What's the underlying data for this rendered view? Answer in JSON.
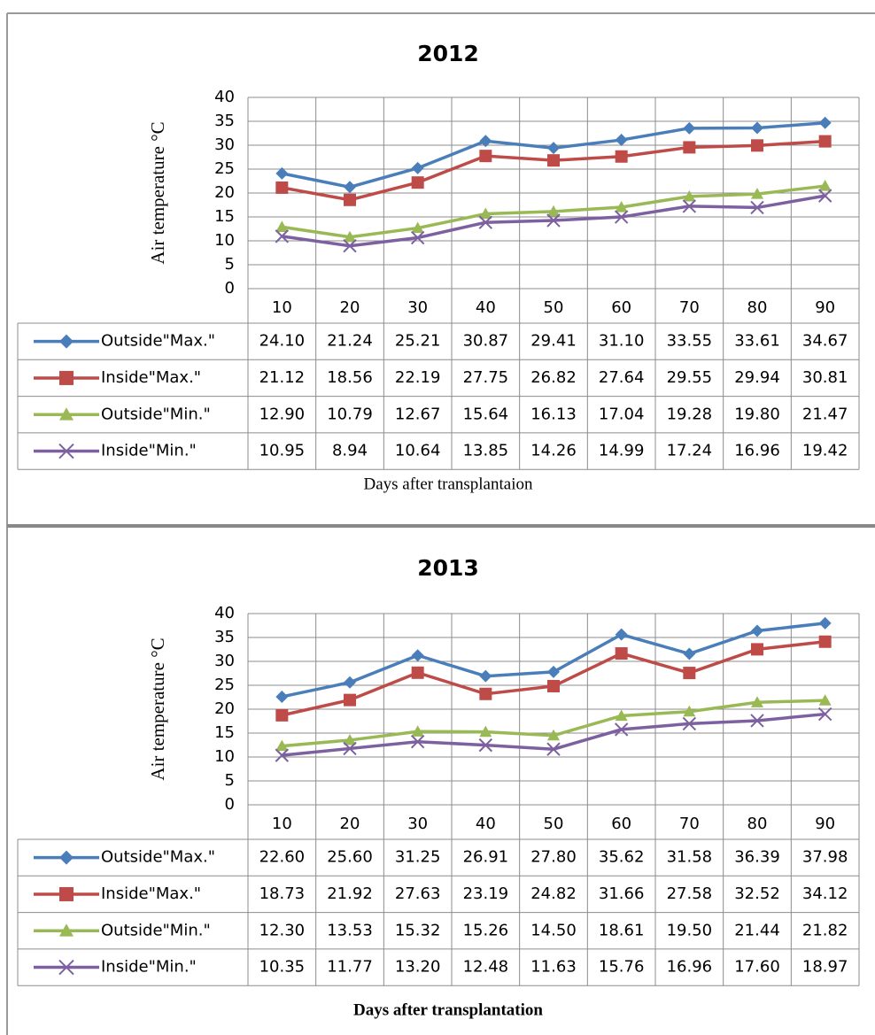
{
  "chart_data": [
    {
      "type": "line",
      "title": "2012",
      "y_label": "Air temperature °C",
      "x_label": "Days after transplantaion",
      "categories": [
        "10",
        "20",
        "30",
        "40",
        "50",
        "60",
        "70",
        "80",
        "90"
      ],
      "ylim": [
        0,
        40
      ],
      "yticks": [
        0,
        5,
        10,
        15,
        20,
        25,
        30,
        35,
        40
      ],
      "grid": true,
      "series": [
        {
          "name": "Outside\"Max.\"",
          "color": "#4a7ebb",
          "marker": "diamond",
          "values": [
            24.1,
            21.24,
            25.21,
            30.87,
            29.41,
            31.1,
            33.55,
            33.61,
            34.67
          ],
          "value_labels": [
            "24.10",
            "21.24",
            "25.21",
            "30.87",
            "29.41",
            "31.10",
            "33.55",
            "33.61",
            "34.67"
          ]
        },
        {
          "name": "Inside\"Max.\"",
          "color": "#be4b48",
          "marker": "square",
          "values": [
            21.12,
            18.56,
            22.19,
            27.75,
            26.82,
            27.64,
            29.55,
            29.94,
            30.81
          ],
          "value_labels": [
            "21.12",
            "18.56",
            "22.19",
            "27.75",
            "26.82",
            "27.64",
            "29.55",
            "29.94",
            "30.81"
          ]
        },
        {
          "name": "Outside\"Min.\"",
          "color": "#98b954",
          "marker": "triangle",
          "values": [
            12.9,
            10.79,
            12.67,
            15.64,
            16.13,
            17.04,
            19.28,
            19.8,
            21.47
          ],
          "value_labels": [
            "12.90",
            "10.79",
            "12.67",
            "15.64",
            "16.13",
            "17.04",
            "19.28",
            "19.80",
            "21.47"
          ]
        },
        {
          "name": "Inside\"Min.\"",
          "color": "#7d60a0",
          "marker": "x",
          "values": [
            10.95,
            8.94,
            10.64,
            13.85,
            14.26,
            14.99,
            17.24,
            16.96,
            19.42
          ],
          "value_labels": [
            "10.95",
            "8.94",
            "10.64",
            "13.85",
            "14.26",
            "14.99",
            "17.24",
            "16.96",
            "19.42"
          ]
        }
      ]
    },
    {
      "type": "line",
      "title": "2013",
      "y_label": "Air temperature °C",
      "x_label": "Days after transplantation",
      "categories": [
        "10",
        "20",
        "30",
        "40",
        "50",
        "60",
        "70",
        "80",
        "90"
      ],
      "ylim": [
        0,
        40
      ],
      "yticks": [
        0,
        5,
        10,
        15,
        20,
        25,
        30,
        35,
        40
      ],
      "grid": true,
      "series": [
        {
          "name": "Outside\"Max.\"",
          "color": "#4a7ebb",
          "marker": "diamond",
          "values": [
            22.6,
            25.6,
            31.25,
            26.91,
            27.8,
            35.62,
            31.58,
            36.39,
            37.98
          ],
          "value_labels": [
            "22.60",
            "25.60",
            "31.25",
            "26.91",
            "27.80",
            "35.62",
            "31.58",
            "36.39",
            "37.98"
          ]
        },
        {
          "name": "Inside\"Max.\"",
          "color": "#be4b48",
          "marker": "square",
          "values": [
            18.73,
            21.92,
            27.63,
            23.19,
            24.82,
            31.66,
            27.58,
            32.52,
            34.12
          ],
          "value_labels": [
            "18.73",
            "21.92",
            "27.63",
            "23.19",
            "24.82",
            "31.66",
            "27.58",
            "32.52",
            "34.12"
          ]
        },
        {
          "name": "Outside\"Min.\"",
          "color": "#98b954",
          "marker": "triangle",
          "values": [
            12.3,
            13.53,
            15.32,
            15.26,
            14.5,
            18.61,
            19.5,
            21.44,
            21.82
          ],
          "value_labels": [
            "12.30",
            "13.53",
            "15.32",
            "15.26",
            "14.50",
            "18.61",
            "19.50",
            "21.44",
            "21.82"
          ]
        },
        {
          "name": "Inside\"Min.\"",
          "color": "#7d60a0",
          "marker": "x",
          "values": [
            10.35,
            11.77,
            13.2,
            12.48,
            11.63,
            15.76,
            16.96,
            17.6,
            18.97
          ],
          "value_labels": [
            "10.35",
            "11.77",
            "13.20",
            "12.48",
            "11.63",
            "15.76",
            "16.96",
            "17.60",
            "18.97"
          ]
        }
      ]
    }
  ]
}
